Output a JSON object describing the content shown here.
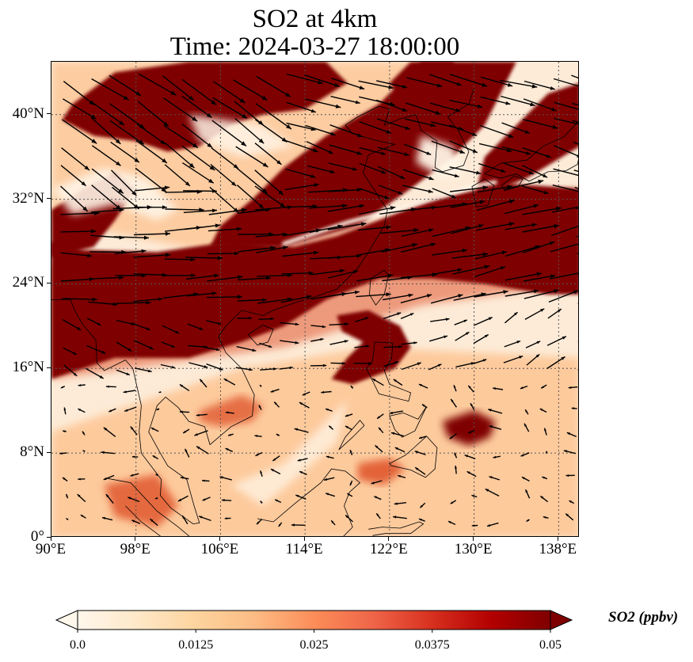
{
  "title": {
    "line1": "SO2 at 4km",
    "line2": "Time: 2024-03-27 18:00:00"
  },
  "map": {
    "extent": {
      "lon_min": 90,
      "lon_max": 140,
      "lat_min": 0,
      "lat_max": 45
    },
    "lat_ticks": [
      {
        "value": 0,
        "label": "0°"
      },
      {
        "value": 8,
        "label": "8°N"
      },
      {
        "value": 16,
        "label": "16°N"
      },
      {
        "value": 24,
        "label": "24°N"
      },
      {
        "value": 32,
        "label": "32°N"
      },
      {
        "value": 40,
        "label": "40°N"
      }
    ],
    "lon_ticks": [
      {
        "value": 90,
        "label": "90°E"
      },
      {
        "value": 98,
        "label": "98°E"
      },
      {
        "value": 106,
        "label": "106°E"
      },
      {
        "value": 114,
        "label": "114°E"
      },
      {
        "value": 122,
        "label": "122°E"
      },
      {
        "value": 130,
        "label": "130°E"
      },
      {
        "value": 138,
        "label": "138°E"
      }
    ],
    "gridlines": true,
    "colors": {
      "background": "#fdebd7",
      "low": "#fff4e6",
      "mid": "#fdae6b",
      "high": "#e0582e",
      "max": "#7f0000",
      "arrow": "#000000",
      "coast": "#000000"
    }
  },
  "colorbar": {
    "label": "SO2 (ppbv)",
    "min": 0.0,
    "max": 0.05,
    "ticks": [
      {
        "value": 0.0,
        "label": "0.0"
      },
      {
        "value": 0.0125,
        "label": "0.0125"
      },
      {
        "value": 0.025,
        "label": "0.025"
      },
      {
        "value": 0.0375,
        "label": "0.0375"
      },
      {
        "value": 0.05,
        "label": "0.05"
      }
    ],
    "extend": "both",
    "colormap": [
      "#fff7ec",
      "#fee8c8",
      "#fdd49e",
      "#fdbb84",
      "#fc8d59",
      "#ef6548",
      "#d7301f",
      "#b30000",
      "#7f0000"
    ]
  }
}
